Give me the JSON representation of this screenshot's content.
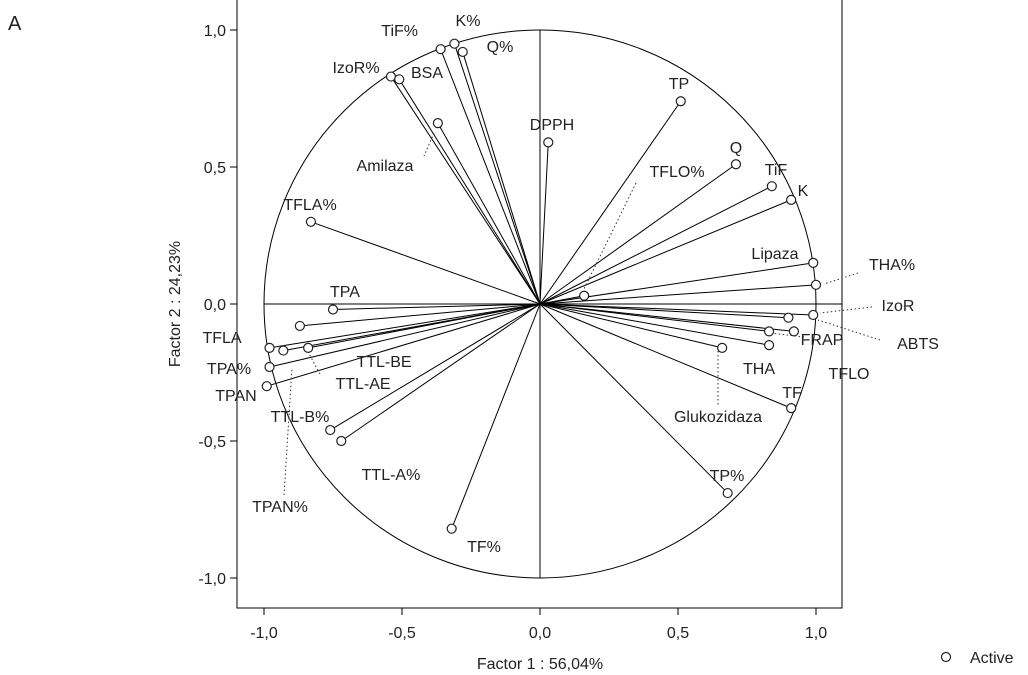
{
  "panel_label": "A",
  "chart_data": {
    "type": "scatter",
    "subtype": "pca-correlation-circle",
    "xlabel": "Factor 1 : 56,04%",
    "ylabel": "Factor 2 : 24,23%",
    "xlim": [
      -1.1,
      1.1
    ],
    "ylim": [
      -1.1,
      1.1
    ],
    "xticks": [
      "-1,0",
      "-0,5",
      "0,0",
      "0,5",
      "1,0"
    ],
    "yticks": [
      "1,0",
      "0,5",
      "0,0",
      "-0,5",
      "-1,0"
    ],
    "xtick_values": [
      -1.0,
      -0.5,
      0.0,
      0.5,
      1.0
    ],
    "ytick_values": [
      1.0,
      0.5,
      0.0,
      -0.5,
      -1.0
    ],
    "legend": {
      "label": "Active",
      "position": "bottom-right"
    },
    "points": [
      {
        "label": "TiF%",
        "x": -0.36,
        "y": 0.93
      },
      {
        "label": "K%",
        "x": -0.31,
        "y": 0.95
      },
      {
        "label": "Q%",
        "x": -0.28,
        "y": 0.92
      },
      {
        "label": "IzoR%",
        "x": -0.54,
        "y": 0.83
      },
      {
        "label": "BSA",
        "x": -0.51,
        "y": 0.82
      },
      {
        "label": "Amilaza",
        "x": -0.37,
        "y": 0.66
      },
      {
        "label": "TP",
        "x": 0.51,
        "y": 0.74
      },
      {
        "label": "DPPH",
        "x": 0.03,
        "y": 0.59
      },
      {
        "label": "Q",
        "x": 0.71,
        "y": 0.51
      },
      {
        "label": "TiF",
        "x": 0.84,
        "y": 0.43
      },
      {
        "label": "K",
        "x": 0.91,
        "y": 0.38
      },
      {
        "label": "TFLO%",
        "x": 0.16,
        "y": 0.03
      },
      {
        "label": "TFLA%",
        "x": -0.83,
        "y": 0.3
      },
      {
        "label": "Lipaza",
        "x": 0.99,
        "y": 0.15
      },
      {
        "label": "THA%",
        "x": 1.0,
        "y": 0.07
      },
      {
        "label": "IzoR",
        "x": 0.99,
        "y": -0.04
      },
      {
        "label": "ABTS",
        "x": 0.9,
        "y": -0.05
      },
      {
        "label": "FRAP",
        "x": 0.83,
        "y": -0.1
      },
      {
        "label": "TFLO",
        "x": 0.92,
        "y": -0.1
      },
      {
        "label": "THA",
        "x": 0.83,
        "y": -0.15
      },
      {
        "label": "Glukozidaza",
        "x": 0.66,
        "y": -0.16
      },
      {
        "label": "TF",
        "x": 0.91,
        "y": -0.38
      },
      {
        "label": "TP%",
        "x": 0.68,
        "y": -0.69
      },
      {
        "label": "TPA",
        "x": -0.75,
        "y": -0.02
      },
      {
        "label": "TFLA",
        "x": -0.98,
        "y": -0.16
      },
      {
        "label": "TTL-BE",
        "x": -0.87,
        "y": -0.08
      },
      {
        "label": "TTL-AE",
        "x": -0.84,
        "y": -0.16
      },
      {
        "label": "TPA%",
        "x": -0.93,
        "y": -0.17
      },
      {
        "label": "TPAN",
        "x": -0.98,
        "y": -0.23
      },
      {
        "label": "TTL-B%",
        "x": -0.76,
        "y": -0.46
      },
      {
        "label": "TTL-A%",
        "x": -0.72,
        "y": -0.5
      },
      {
        "label": "TPAN%",
        "x": -0.99,
        "y": -0.3
      },
      {
        "label": "TF%",
        "x": -0.32,
        "y": -0.82
      }
    ]
  }
}
